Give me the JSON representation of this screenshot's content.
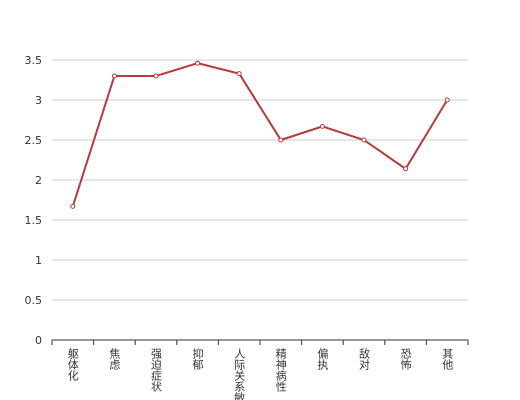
{
  "chart_data": {
    "type": "line",
    "categories": [
      "躯体化",
      "焦虑",
      "强迫症状",
      "抑郁",
      "人际关系敏感",
      "精神病性",
      "偏执",
      "敌对",
      "恐怖",
      "其他"
    ],
    "values": [
      1.67,
      3.3,
      3.3,
      3.46,
      3.33,
      2.5,
      2.67,
      2.5,
      2.14,
      3.0
    ],
    "color": "#b83b3b",
    "ylim": [
      0,
      3.5
    ],
    "yticks": [
      0,
      0.5,
      1,
      1.5,
      2,
      2.5,
      3,
      3.5
    ],
    "grid": true
  }
}
